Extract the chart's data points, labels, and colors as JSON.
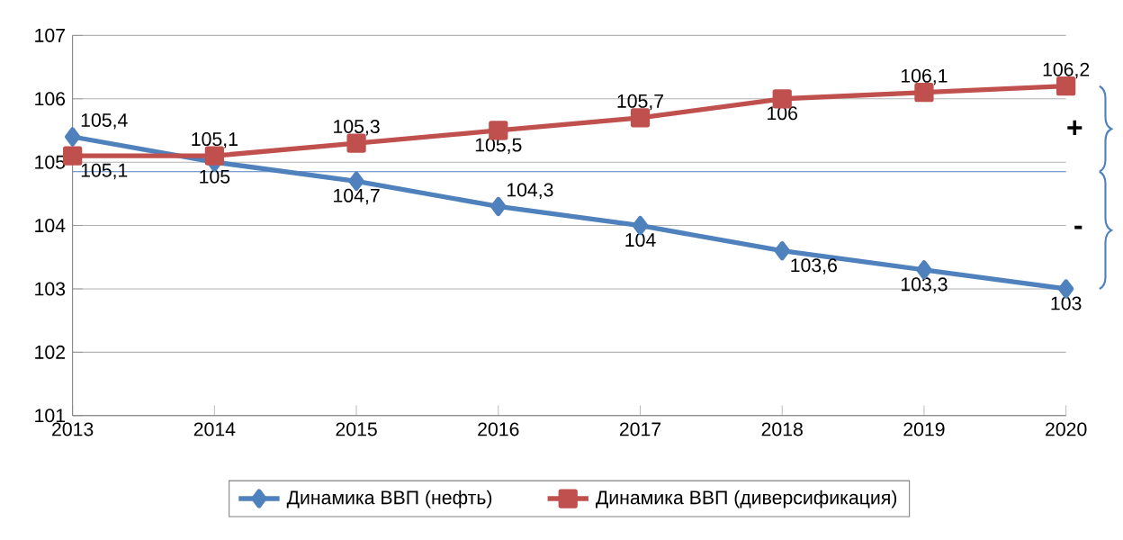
{
  "chart_data": {
    "type": "line",
    "categories": [
      "2013",
      "2014",
      "2015",
      "2016",
      "2017",
      "2018",
      "2019",
      "2020"
    ],
    "series": [
      {
        "name": "Динамика ВВП (нефть)",
        "color": "#4f81bd",
        "marker": "diamond",
        "values": [
          105.4,
          105,
          104.7,
          104.3,
          104,
          103.6,
          103.3,
          103
        ],
        "value_labels": [
          "105,4",
          "105",
          "104,7",
          "104,3",
          "104",
          "103,6",
          "103,3",
          "103"
        ]
      },
      {
        "name": "Динамика ВВП (диверсификация)",
        "color": "#c0504d",
        "marker": "square",
        "values": [
          105.1,
          105.1,
          105.3,
          105.5,
          105.7,
          106,
          106.1,
          106.2
        ],
        "value_labels": [
          "105,1",
          "105,1",
          "105,3",
          "105,5",
          "105,7",
          "106",
          "106,1",
          "106,2"
        ]
      }
    ],
    "ylim": [
      101,
      107
    ],
    "yticks": [
      101,
      102,
      103,
      104,
      105,
      106,
      107
    ],
    "grid": "y",
    "legend": "bottom",
    "ref_lines": [
      {
        "axis": "y",
        "value": 104.85,
        "color": "#4f81bd"
      }
    ],
    "annotations": [
      "+",
      "-"
    ]
  }
}
